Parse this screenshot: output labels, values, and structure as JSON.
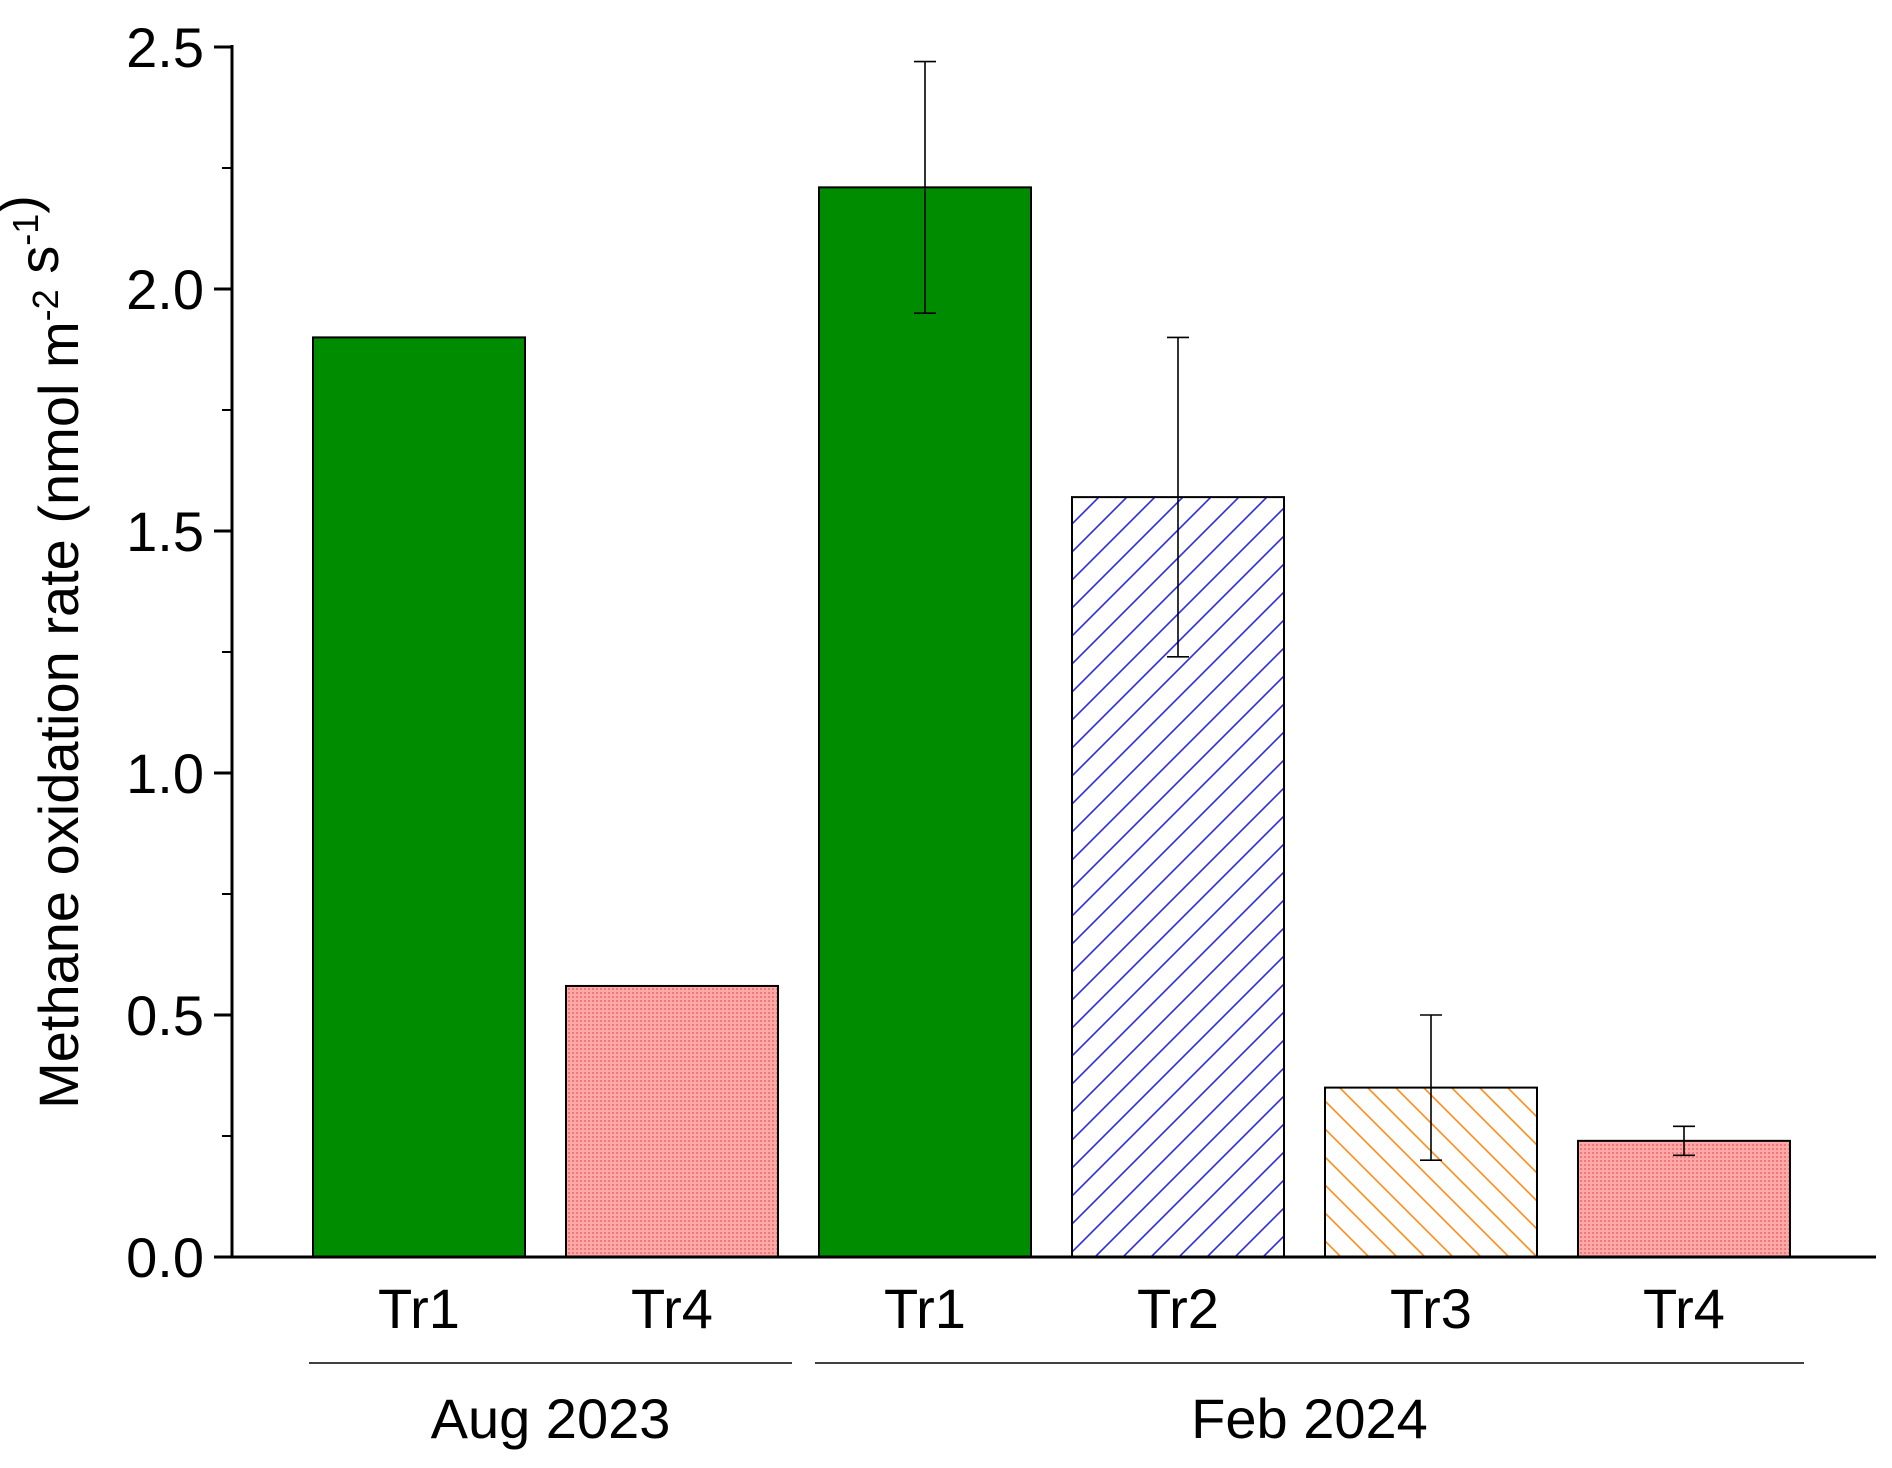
{
  "chart_data": {
    "type": "bar",
    "ylabel": {
      "main": "Methane oxidation rate (nmol m",
      "sup1": "-2",
      "mid": " s",
      "sup2": "-1",
      "end": ")"
    },
    "ylim": [
      0,
      2.5
    ],
    "yticks": [
      "0.0",
      "0.5",
      "1.0",
      "1.5",
      "2.0",
      "2.5"
    ],
    "ytick_values": [
      0,
      0.5,
      1.0,
      1.5,
      2.0,
      2.5
    ],
    "groups": [
      {
        "label": "Aug 2023",
        "start": 0,
        "end": 1
      },
      {
        "label": "Feb 2024",
        "start": 2,
        "end": 5
      }
    ],
    "bars": [
      {
        "category": "Tr1",
        "group": "Aug 2023",
        "value": 1.9,
        "error": null,
        "fill": "solid",
        "color": "#008C00"
      },
      {
        "category": "Tr4",
        "group": "Aug 2023",
        "value": 0.56,
        "error": null,
        "fill": "dotted",
        "color": "#FF9C9C"
      },
      {
        "category": "Tr1",
        "group": "Feb 2024",
        "value": 2.21,
        "error": 0.26,
        "fill": "solid",
        "color": "#008C00"
      },
      {
        "category": "Tr2",
        "group": "Feb 2024",
        "value": 1.57,
        "error": 0.33,
        "fill": "hatch-up",
        "color": "#2B2BE0"
      },
      {
        "category": "Tr3",
        "group": "Feb 2024",
        "value": 0.35,
        "error": 0.15,
        "fill": "hatch-down",
        "color": "#FF8C1A"
      },
      {
        "category": "Tr4",
        "group": "Feb 2024",
        "value": 0.24,
        "error": 0.03,
        "fill": "dotted",
        "color": "#FF9C9C"
      }
    ]
  }
}
